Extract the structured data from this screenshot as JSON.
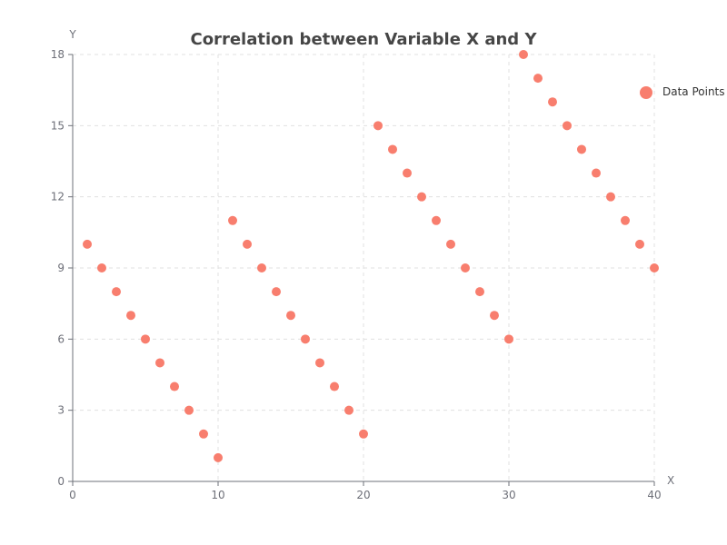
{
  "chart_data": {
    "type": "scatter",
    "title": "Correlation between Variable X and Y",
    "xlabel": "X",
    "ylabel": "Y",
    "xlim": [
      0,
      40
    ],
    "ylim": [
      0,
      18
    ],
    "xticks": [
      0,
      10,
      20,
      30,
      40
    ],
    "yticks": [
      0,
      3,
      6,
      9,
      12,
      15,
      18
    ],
    "grid": true,
    "grid_style": "dashed",
    "legend_position": "top-right",
    "colors": {
      "point": "#f87e6e",
      "grid": "#e0e0e0",
      "axis": "#6e7079",
      "title": "#464646"
    },
    "series": [
      {
        "name": "Data Points",
        "x": [
          1,
          2,
          3,
          4,
          5,
          6,
          7,
          8,
          9,
          10,
          11,
          12,
          13,
          14,
          15,
          16,
          17,
          18,
          19,
          20,
          21,
          22,
          23,
          24,
          25,
          26,
          27,
          28,
          29,
          30,
          31,
          32,
          33,
          34,
          35,
          36,
          37,
          38,
          39,
          40
        ],
        "y": [
          10,
          9,
          8,
          7,
          6,
          5,
          4,
          3,
          2,
          1,
          11,
          10,
          9,
          8,
          7,
          6,
          5,
          4,
          3,
          2,
          15,
          14,
          13,
          12,
          11,
          10,
          9,
          8,
          7,
          6,
          18,
          17,
          16,
          15,
          14,
          13,
          12,
          11,
          10,
          9
        ]
      }
    ]
  }
}
